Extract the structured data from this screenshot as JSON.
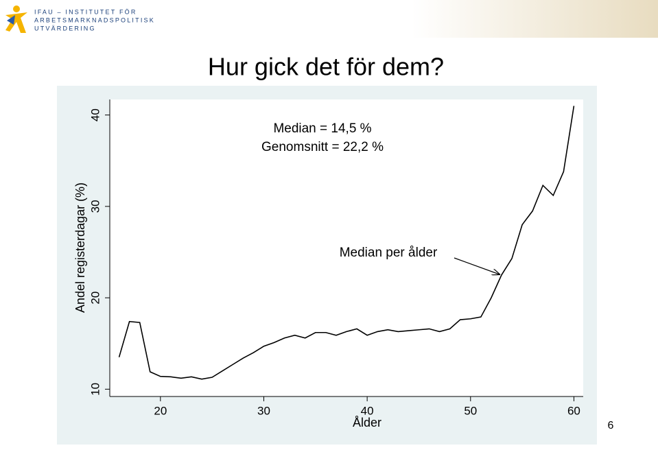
{
  "header": {
    "logo_lines": [
      "IFAU – INSTITUTET FÖR",
      "ARBETSMARKNADSPOLITISK",
      "UTVÄRDERING"
    ]
  },
  "title": "Hur gick det för dem?",
  "page_number": "6",
  "chart_data": {
    "type": "line",
    "annotations": [
      "Median = 14,5 %",
      "Genomsnitt = 22,2 %",
      "Median per ålder"
    ],
    "x_label": "Ålder",
    "y_label": "Andel registerdagar (%)",
    "x": [
      16,
      17,
      18,
      19,
      20,
      21,
      22,
      23,
      24,
      25,
      26,
      27,
      28,
      29,
      30,
      31,
      32,
      33,
      34,
      35,
      36,
      37,
      38,
      39,
      40,
      41,
      42,
      43,
      44,
      45,
      46,
      47,
      48,
      49,
      50,
      51,
      52,
      53,
      54,
      55,
      56,
      57,
      58,
      59,
      60
    ],
    "series": [
      {
        "color": "#000000",
        "values": [
          13.5,
          17.4,
          17.3,
          11.9,
          11.4,
          11.35,
          11.2,
          11.35,
          11.1,
          11.3,
          12.0,
          12.7,
          13.4,
          14.0,
          14.7,
          15.1,
          15.6,
          15.9,
          15.6,
          16.2,
          16.2,
          15.9,
          16.3,
          16.6,
          15.9,
          16.3,
          16.5,
          16.3,
          16.4,
          16.5,
          16.6,
          16.3,
          16.6,
          17.6,
          17.7,
          17.9,
          20.0,
          22.5,
          24.3,
          28.0,
          29.5,
          32.3,
          31.2,
          33.8,
          41.0
        ]
      }
    ],
    "xlim": [
      15.1,
      60.9
    ],
    "xticks": [
      20,
      30,
      40,
      50,
      60
    ],
    "ylim": [
      9.2,
      41.7
    ],
    "yticks": [
      10,
      20,
      30,
      40
    ]
  }
}
